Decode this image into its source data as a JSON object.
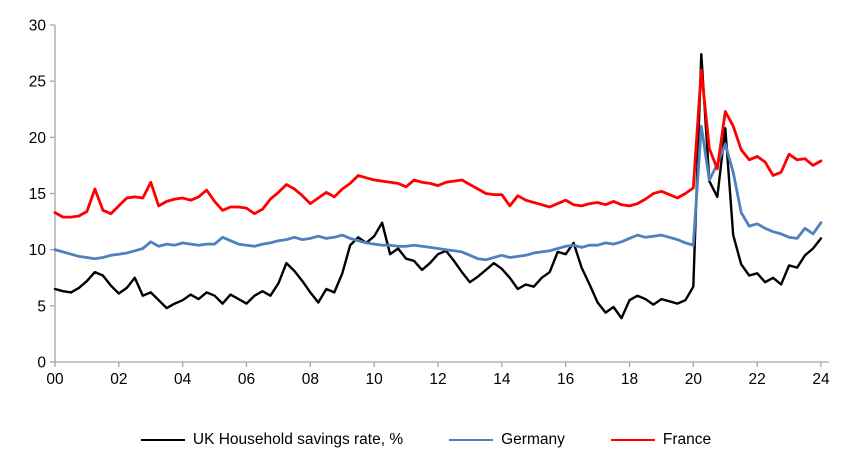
{
  "chart_data": {
    "type": "line",
    "title": "",
    "frequency": "quarterly",
    "start_period": "2000Q1",
    "end_period": "2024Q1",
    "x_tick_labels": [
      "00",
      "02",
      "04",
      "06",
      "08",
      "10",
      "12",
      "14",
      "16",
      "18",
      "20",
      "22",
      "24"
    ],
    "y_ticks": [
      0,
      5,
      10,
      15,
      20,
      25,
      30
    ],
    "ylim": [
      0,
      30
    ],
    "xlabel": "",
    "ylabel": "",
    "grid": false,
    "legend_position": "bottom-center",
    "axis_color": "#a6a6a6",
    "text_color": "#000000",
    "series": [
      {
        "name": "UK Household savings rate, %",
        "color": "#000000",
        "stroke_width": 2.4,
        "values": [
          6.5,
          6.3,
          6.2,
          6.6,
          7.2,
          8.0,
          7.7,
          6.8,
          6.1,
          6.6,
          7.5,
          5.9,
          6.2,
          5.5,
          4.8,
          5.2,
          5.5,
          6.0,
          5.6,
          6.2,
          5.9,
          5.2,
          6.0,
          5.6,
          5.2,
          5.9,
          6.3,
          5.9,
          7.0,
          8.8,
          8.1,
          7.2,
          6.2,
          5.3,
          6.5,
          6.2,
          7.9,
          10.4,
          11.1,
          10.6,
          11.2,
          12.4,
          9.6,
          10.1,
          9.2,
          9.0,
          8.2,
          8.8,
          9.6,
          9.9,
          9.0,
          8.0,
          7.1,
          7.6,
          8.2,
          8.8,
          8.3,
          7.5,
          6.5,
          6.9,
          6.7,
          7.5,
          8.0,
          9.8,
          9.6,
          10.6,
          8.4,
          6.9,
          5.3,
          4.4,
          4.9,
          3.9,
          5.5,
          5.9,
          5.6,
          5.1,
          5.6,
          5.4,
          5.2,
          5.5,
          6.7,
          27.4,
          16.1,
          14.7,
          20.8,
          11.3,
          8.7,
          7.7,
          7.9,
          7.1,
          7.5,
          6.9,
          8.6,
          8.4,
          9.5,
          10.1,
          11.0
        ]
      },
      {
        "name": "Germany",
        "color": "#4f81bd",
        "stroke_width": 2.8,
        "values": [
          10.0,
          9.8,
          9.6,
          9.4,
          9.3,
          9.2,
          9.3,
          9.5,
          9.6,
          9.7,
          9.9,
          10.1,
          10.7,
          10.3,
          10.5,
          10.4,
          10.6,
          10.5,
          10.4,
          10.5,
          10.5,
          11.1,
          10.8,
          10.5,
          10.4,
          10.3,
          10.5,
          10.6,
          10.8,
          10.9,
          11.1,
          10.9,
          11.0,
          11.2,
          11.0,
          11.1,
          11.3,
          11.0,
          10.8,
          10.6,
          10.5,
          10.4,
          10.4,
          10.3,
          10.3,
          10.4,
          10.3,
          10.2,
          10.1,
          10.0,
          9.9,
          9.8,
          9.5,
          9.2,
          9.1,
          9.3,
          9.5,
          9.3,
          9.4,
          9.5,
          9.7,
          9.8,
          9.9,
          10.1,
          10.3,
          10.4,
          10.2,
          10.4,
          10.4,
          10.6,
          10.5,
          10.7,
          11.0,
          11.3,
          11.1,
          11.2,
          11.3,
          11.1,
          10.9,
          10.6,
          10.4,
          21.0,
          16.2,
          17.6,
          19.4,
          16.9,
          13.3,
          12.1,
          12.3,
          11.9,
          11.6,
          11.4,
          11.1,
          11.0,
          11.9,
          11.4,
          12.4
        ]
      },
      {
        "name": "France",
        "color": "#ff0000",
        "stroke_width": 2.8,
        "values": [
          13.3,
          12.9,
          12.9,
          13.0,
          13.4,
          15.4,
          13.5,
          13.2,
          13.9,
          14.6,
          14.7,
          14.6,
          16.0,
          13.9,
          14.3,
          14.5,
          14.6,
          14.4,
          14.7,
          15.3,
          14.3,
          13.5,
          13.8,
          13.8,
          13.7,
          13.2,
          13.6,
          14.5,
          15.1,
          15.8,
          15.4,
          14.8,
          14.1,
          14.6,
          15.1,
          14.7,
          15.4,
          15.9,
          16.6,
          16.4,
          16.2,
          16.1,
          16.0,
          15.9,
          15.6,
          16.2,
          16.0,
          15.9,
          15.7,
          16.0,
          16.1,
          16.2,
          15.8,
          15.4,
          15.0,
          14.9,
          14.9,
          13.9,
          14.8,
          14.4,
          14.2,
          14.0,
          13.8,
          14.1,
          14.4,
          14.0,
          13.9,
          14.1,
          14.2,
          14.0,
          14.3,
          14.0,
          13.9,
          14.1,
          14.5,
          15.0,
          15.2,
          14.9,
          14.6,
          15.0,
          15.5,
          26.0,
          19.0,
          17.2,
          22.3,
          21.0,
          18.9,
          18.0,
          18.3,
          17.8,
          16.6,
          16.9,
          18.5,
          18.0,
          18.1,
          17.5,
          17.9
        ]
      }
    ]
  }
}
